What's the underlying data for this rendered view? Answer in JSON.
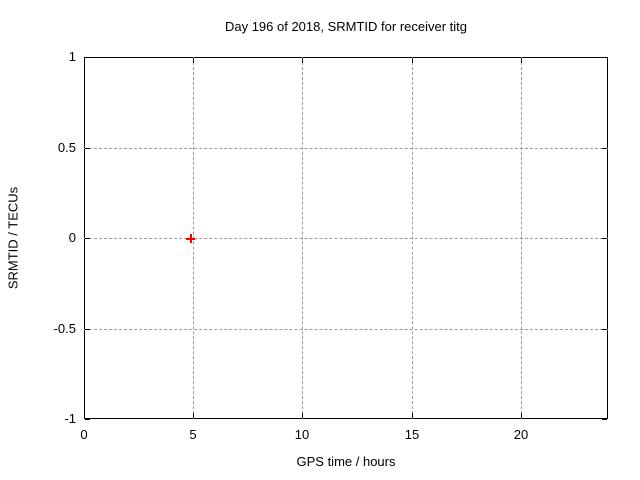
{
  "page": {
    "background": "#ffffff"
  },
  "colors": {
    "axis": "#000000",
    "grid": "#9b9b9b",
    "text": "#000000",
    "marker": "#ff0000"
  },
  "chart_data": {
    "type": "scatter",
    "title": "Day 196 of 2018, SRMTID for receiver titg",
    "xlabel": "GPS time / hours",
    "ylabel": "SRMTID / TECUs",
    "xlim": [
      0,
      24
    ],
    "ylim": [
      -1,
      1
    ],
    "x_ticks": [
      0,
      5,
      10,
      15,
      20
    ],
    "x_tick_labels": [
      "0",
      "5",
      "10",
      "15",
      "20"
    ],
    "y_ticks": [
      1,
      0.5,
      0,
      -0.5,
      -1
    ],
    "y_tick_labels": [
      "1",
      "0.5",
      "0",
      "-0.5",
      "-1"
    ],
    "grid": true,
    "grid_style": "dashed",
    "legend_position": "none",
    "series": [
      {
        "name": "SRMTID",
        "marker": "plus",
        "color": "#ff0000",
        "points": [
          {
            "x": 4.87,
            "y": 0.0
          }
        ]
      }
    ]
  }
}
